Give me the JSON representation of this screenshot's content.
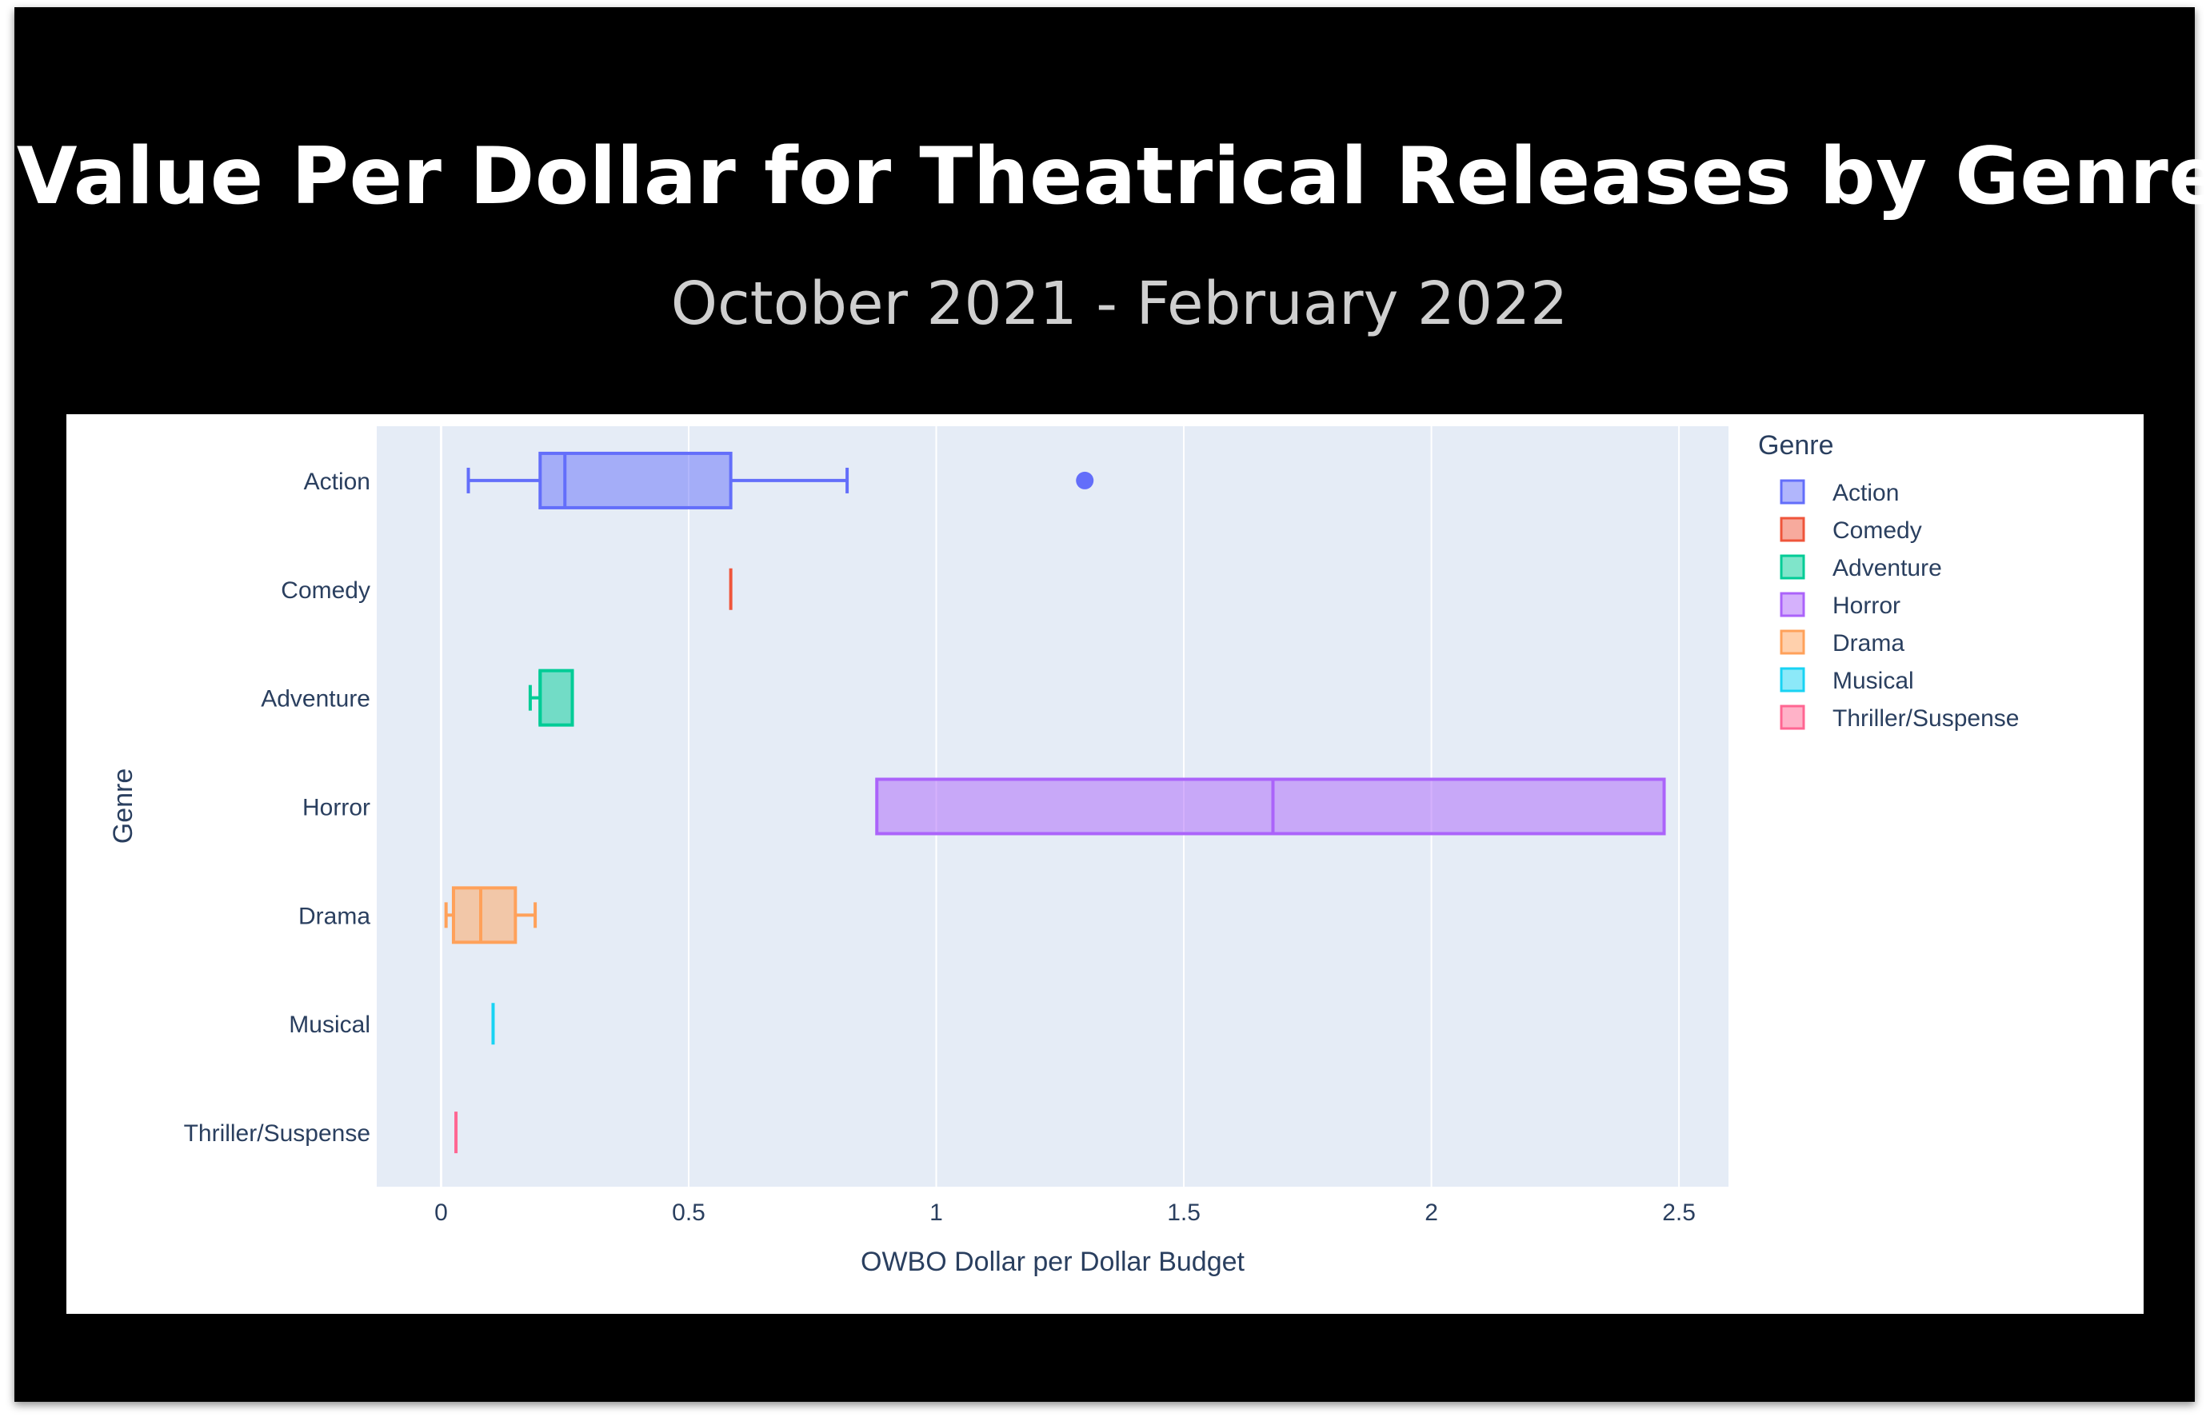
{
  "title": "Value Per Dollar for Theatrical Releases by Genre",
  "subtitle": "October 2021 - February 2022",
  "chart_data": {
    "type": "box",
    "orientation": "horizontal",
    "xlabel": "OWBO Dollar per Dollar Budget",
    "ylabel": "Genre",
    "xlim": [
      -0.13,
      2.6
    ],
    "xticks": [
      0,
      0.5,
      1,
      1.5,
      2,
      2.5
    ],
    "xtick_labels": [
      "0",
      "0.5",
      "1",
      "1.5",
      "2",
      "2.5"
    ],
    "grid": true,
    "legend_title": "Genre",
    "legend_position": "right",
    "series": [
      {
        "name": "Action",
        "color": "#636efa",
        "min": 0.055,
        "q1": 0.2,
        "median": 0.25,
        "q3": 0.585,
        "max": 0.82,
        "outliers": [
          1.3
        ]
      },
      {
        "name": "Comedy",
        "color": "#ef553b",
        "min": 0.585,
        "q1": 0.585,
        "median": 0.585,
        "q3": 0.585,
        "max": 0.585,
        "outliers": []
      },
      {
        "name": "Adventure",
        "color": "#00cc96",
        "min": 0.18,
        "q1": 0.2,
        "median": 0.2,
        "q3": 0.265,
        "max": 0.265,
        "outliers": []
      },
      {
        "name": "Horror",
        "color": "#ab63fa",
        "min": 0.88,
        "q1": 0.88,
        "median": 1.68,
        "q3": 2.47,
        "max": 2.47,
        "outliers": []
      },
      {
        "name": "Drama",
        "color": "#ffa15a",
        "min": 0.01,
        "q1": 0.025,
        "median": 0.08,
        "q3": 0.15,
        "max": 0.19,
        "outliers": []
      },
      {
        "name": "Musical",
        "color": "#19d3f3",
        "min": 0.105,
        "q1": 0.105,
        "median": 0.105,
        "q3": 0.105,
        "max": 0.105,
        "outliers": []
      },
      {
        "name": "Thriller/Suspense",
        "color": "#ff6692",
        "min": 0.03,
        "q1": 0.03,
        "median": 0.03,
        "q3": 0.03,
        "max": 0.03,
        "outliers": []
      }
    ]
  }
}
